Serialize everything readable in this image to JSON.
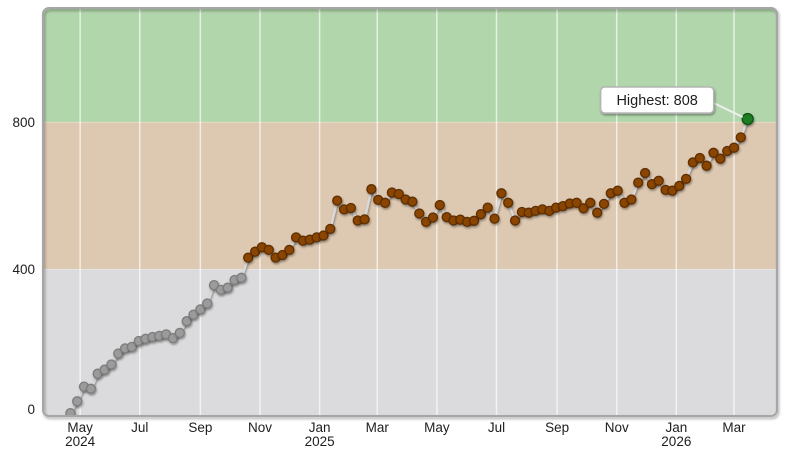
{
  "chart_data": {
    "type": "scatter",
    "title": "",
    "xlabel": "",
    "ylabel": "",
    "legend": false,
    "grid": "vertical-white-lines-at-ticks",
    "xlim": [
      "2024-03-24",
      "2026-04-14"
    ],
    "ylim": [
      0,
      1110
    ],
    "threshold_low_high": 400,
    "series": [
      {
        "name": "weekly-values",
        "start_date": "2024-04-21",
        "interval_days": 7,
        "values": [
          8,
          40,
          80,
          74,
          115,
          126,
          140,
          170,
          184,
          188,
          204,
          210,
          215,
          218,
          222,
          212,
          226,
          258,
          276,
          290,
          306,
          356,
          343,
          349,
          370,
          376,
          431,
          447,
          459,
          452,
          431,
          438,
          452,
          486,
          477,
          480,
          486,
          491,
          509,
          586,
          562,
          566,
          532,
          535,
          617,
          588,
          580,
          608,
          604,
          589,
          583,
          551,
          528,
          540,
          574,
          541,
          532,
          534,
          528,
          531,
          549,
          567,
          537,
          606,
          580,
          532,
          555,
          553,
          558,
          562,
          558,
          567,
          571,
          578,
          580,
          565,
          580,
          553,
          577,
          606,
          613,
          580,
          589,
          635,
          661,
          631,
          640,
          615,
          613,
          626,
          645,
          690,
          702,
          681,
          716,
          700,
          721,
          730,
          758,
          808
        ]
      }
    ],
    "highlight": {
      "label": "Highest: 808",
      "value": 808
    },
    "x_ticks": [
      {
        "label": "May",
        "sub": "2024",
        "date": "2024-05-01"
      },
      {
        "label": "Jul",
        "date": "2024-07-01"
      },
      {
        "label": "Sep",
        "date": "2024-09-01"
      },
      {
        "label": "Nov",
        "date": "2024-11-01"
      },
      {
        "label": "Jan",
        "sub": "2025",
        "date": "2025-01-01"
      },
      {
        "label": "Mar",
        "date": "2025-03-01"
      },
      {
        "label": "May",
        "date": "2025-05-01"
      },
      {
        "label": "Jul",
        "date": "2025-07-01"
      },
      {
        "label": "Sep",
        "date": "2025-09-01"
      },
      {
        "label": "Nov",
        "date": "2025-11-01"
      },
      {
        "label": "Jan",
        "sub": "2026",
        "date": "2026-01-01"
      },
      {
        "label": "Mar",
        "date": "2026-03-01"
      }
    ],
    "y_ticks": [
      {
        "label": "0",
        "value": 0
      },
      {
        "label": "400",
        "value": 400
      },
      {
        "label": "800",
        "value": 800
      }
    ],
    "bands": [
      {
        "name": "low-band",
        "from": 0,
        "to": 400,
        "color": "#dbdbdd"
      },
      {
        "name": "mid-band",
        "from": 400,
        "to": 800,
        "color": "#ddc8b1"
      },
      {
        "name": "high-band",
        "from": 800,
        "to": 1110,
        "color": "#b2d6ac"
      }
    ],
    "colors": {
      "point_low": "#9b9b9b",
      "point_low_stroke": "#7b7b7b",
      "point_high": "#8a4504",
      "point_high_stroke": "#5c2d00",
      "point_max": "#1d7d20",
      "point_max_stroke": "#0f5214",
      "line": "#d8d8d8",
      "gridline": "#ffffff",
      "frame": "#a6a6a6",
      "label": "#1e1e1e",
      "annotation_bg": "#ffffff",
      "annotation_border": "#b5b5b5",
      "annotation_leader": "#efefef"
    }
  }
}
